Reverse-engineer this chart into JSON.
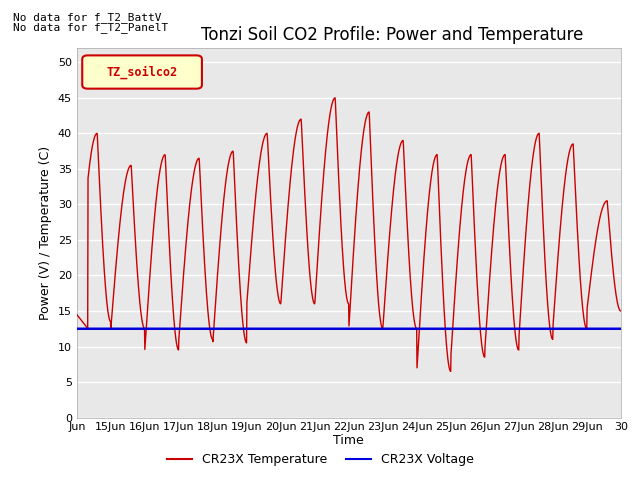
{
  "title": "Tonzi Soil CO2 Profile: Power and Temperature",
  "ylabel": "Power (V) / Temperature (C)",
  "xlabel": "Time",
  "top_left_text_line1": "No data for f_T2_BattV",
  "top_left_text_line2": "No data for f_T2_PanelT",
  "legend_box_label": "TZ_soilco2",
  "ylim": [
    0,
    52
  ],
  "yticks": [
    0,
    5,
    10,
    15,
    20,
    25,
    30,
    35,
    40,
    45,
    50
  ],
  "x_tick_labels": [
    "Jun",
    "15Jun",
    "16Jun",
    "17Jun",
    "18Jun",
    "19Jun",
    "20Jun",
    "21Jun",
    "22Jun",
    "23Jun",
    "24Jun",
    "25Jun",
    "26Jun",
    "27Jun",
    "28Jun",
    "29Jun",
    "30"
  ],
  "voltage_value": 12.5,
  "fig_bg_color": "#ffffff",
  "plot_bg_color": "#e8e8e8",
  "grid_color": "#ffffff",
  "red_line_color": "#cc0000",
  "blue_line_color": "#0000dd",
  "legend_temp_color": "#cc0000",
  "legend_volt_color": "#0000dd",
  "day_peaks": [
    40.0,
    35.5,
    37.0,
    36.5,
    37.5,
    40.0,
    42.0,
    45.0,
    43.0,
    39.0,
    37.0,
    37.0,
    37.0,
    40.0,
    38.5,
    30.5
  ],
  "day_mins": [
    13.5,
    12.5,
    9.5,
    11.0,
    10.5,
    16.0,
    16.0,
    16.0,
    12.5,
    12.5,
    6.5,
    8.5,
    9.5,
    11.0,
    12.5,
    15.0
  ],
  "title_fontsize": 12,
  "label_fontsize": 9,
  "tick_fontsize": 8,
  "legend_fontsize": 9
}
